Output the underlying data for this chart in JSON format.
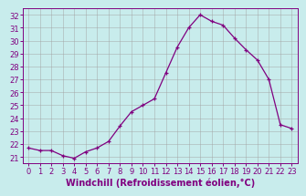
{
  "hours": [
    0,
    1,
    2,
    3,
    4,
    5,
    6,
    7,
    8,
    9,
    10,
    11,
    12,
    13,
    14,
    15,
    16,
    17,
    18,
    19,
    20,
    21,
    22,
    23
  ],
  "values": [
    21.7,
    21.5,
    21.5,
    21.1,
    20.9,
    21.4,
    21.7,
    22.2,
    23.4,
    24.5,
    25.0,
    25.5,
    27.5,
    29.5,
    31.0,
    32.0,
    31.5,
    31.2,
    30.2,
    29.3,
    28.5,
    27.0,
    23.5,
    23.2
  ],
  "line_color": "#800080",
  "marker": "+",
  "bg_color": "#c8ecec",
  "grid_color": "#a0a0a0",
  "ylabel_ticks": [
    21,
    22,
    23,
    24,
    25,
    26,
    27,
    28,
    29,
    30,
    31,
    32
  ],
  "ylim": [
    20.55,
    32.5
  ],
  "xlim": [
    -0.5,
    23.5
  ],
  "xlabel": "Windchill (Refroidissement éolien,°C)",
  "xlabel_color": "#800080",
  "tick_color": "#800080",
  "axis_spine_color": "#800080",
  "font_size_ticks": 6.0,
  "font_size_xlabel": 7.0,
  "markersize": 3.5,
  "linewidth": 0.9
}
